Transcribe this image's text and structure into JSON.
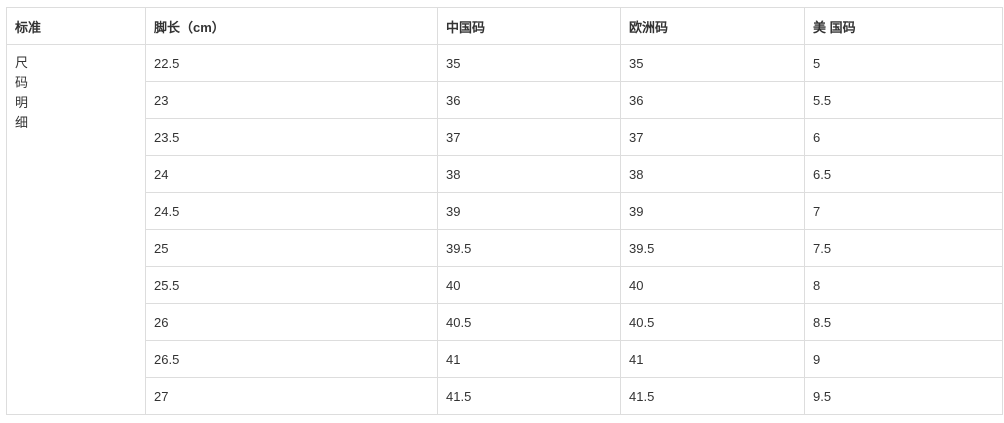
{
  "headers": [
    "标准",
    "脚长（cm）",
    "中国码",
    "欧洲码",
    "美 国码"
  ],
  "row_label": [
    "尺",
    "码",
    "明",
    "细"
  ],
  "rows": [
    [
      "22.5",
      "35",
      "35",
      "5"
    ],
    [
      "23",
      "36",
      "36",
      "5.5"
    ],
    [
      "23.5",
      "37",
      "37",
      "6"
    ],
    [
      "24",
      "38",
      "38",
      "6.5"
    ],
    [
      "24.5",
      "39",
      "39",
      "7"
    ],
    [
      "25",
      "39.5",
      "39.5",
      "7.5"
    ],
    [
      "25.5",
      "40",
      "40",
      "8"
    ],
    [
      "26",
      "40.5",
      "40.5",
      "8.5"
    ],
    [
      "26.5",
      "41",
      "41",
      "9"
    ],
    [
      "27",
      "41.5",
      "41.5",
      "9.5"
    ]
  ]
}
